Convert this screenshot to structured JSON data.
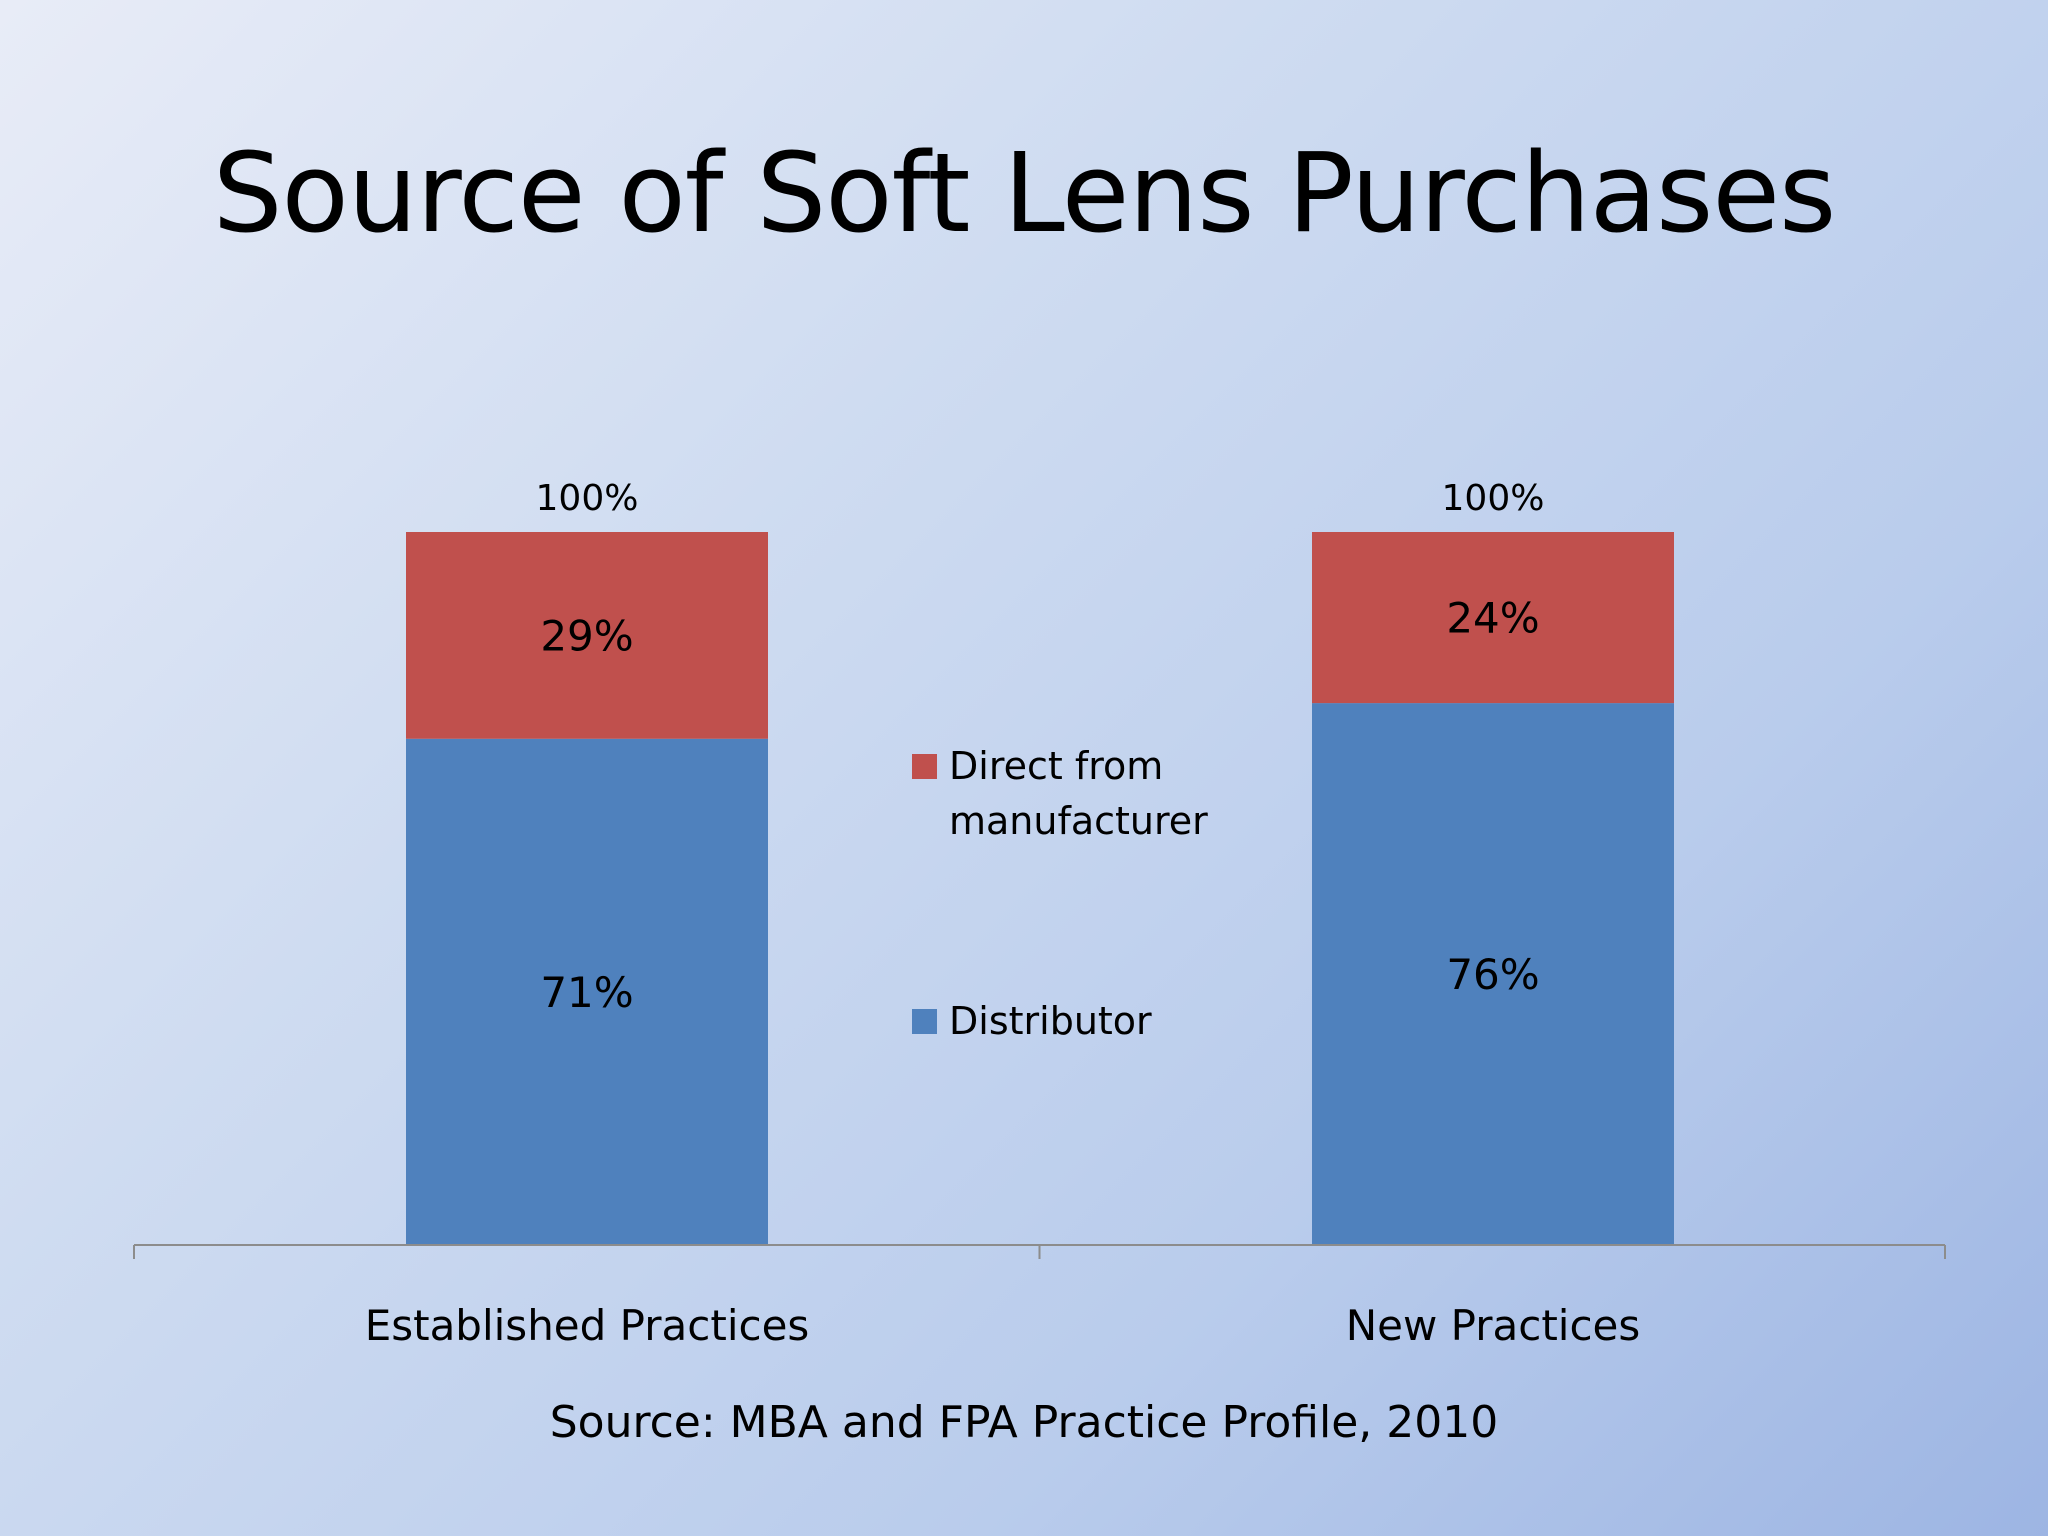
{
  "slide": {
    "title": "Source of Soft Lens Purchases",
    "source": "Source: MBA and FPA Practice Profile, 2010"
  },
  "chart_data": {
    "type": "bar",
    "stacked": true,
    "categories": [
      "Established Practices",
      "New Practices"
    ],
    "series": [
      {
        "name": "Distributor",
        "values": [
          71,
          76
        ],
        "labels": [
          "71%",
          "76%"
        ],
        "color": "#4F81BD"
      },
      {
        "name": "Direct from manufacturer",
        "values": [
          29,
          24
        ],
        "labels": [
          "29%",
          "24%"
        ],
        "color": "#C0504D"
      }
    ],
    "totals": [
      100,
      100
    ],
    "total_labels": [
      "100%",
      "100%"
    ],
    "ylim": [
      0,
      100
    ],
    "legend": {
      "position": "center",
      "order": [
        "Direct from manufacturer",
        "Distributor"
      ],
      "lines": [
        [
          "Direct from",
          "manufacturer"
        ],
        [
          "Distributor"
        ]
      ]
    },
    "grid": false
  }
}
